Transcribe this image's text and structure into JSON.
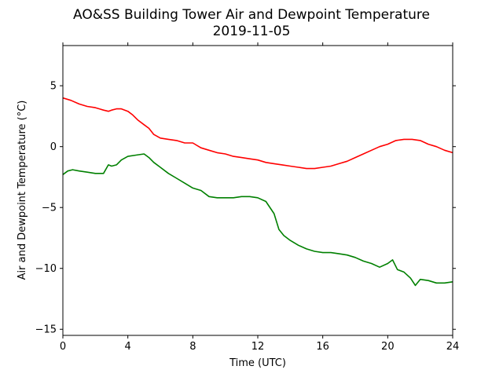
{
  "chart_data": {
    "type": "line",
    "title": "AO&SS Building Tower Air and Dewpoint Temperature",
    "subtitle": "2019-11-05",
    "xlabel": "Time (UTC)",
    "ylabel": "Air and Dewpoint Temperature (°C)",
    "xlim": [
      0,
      24
    ],
    "ylim": [
      -15.5,
      8.3
    ],
    "xticks": [
      0,
      4,
      8,
      12,
      16,
      20,
      24
    ],
    "yticks": [
      -15,
      -10,
      -5,
      0,
      5
    ],
    "grid": false,
    "legend": "none",
    "series": [
      {
        "color": "#ff0000",
        "x": [
          0,
          0.5,
          1,
          1.5,
          2,
          2.5,
          2.8,
          3,
          3.3,
          3.6,
          4,
          4.3,
          4.6,
          5,
          5.3,
          5.6,
          6,
          6.5,
          7,
          7.5,
          8,
          8.5,
          9,
          9.5,
          10,
          10.5,
          11,
          11.5,
          12,
          12.5,
          13,
          13.5,
          14,
          14.5,
          15,
          15.5,
          16,
          16.5,
          17,
          17.5,
          18,
          18.5,
          19,
          19.5,
          20,
          20.5,
          21,
          21.5,
          22,
          22.5,
          23,
          23.5,
          24
        ],
        "y": [
          4.0,
          3.8,
          3.5,
          3.3,
          3.2,
          3.0,
          2.9,
          3.0,
          3.1,
          3.1,
          2.9,
          2.6,
          2.2,
          1.8,
          1.5,
          1.0,
          0.7,
          0.6,
          0.5,
          0.3,
          0.3,
          -0.1,
          -0.3,
          -0.5,
          -0.6,
          -0.8,
          -0.9,
          -1.0,
          -1.1,
          -1.3,
          -1.4,
          -1.5,
          -1.6,
          -1.7,
          -1.8,
          -1.8,
          -1.7,
          -1.6,
          -1.4,
          -1.2,
          -0.9,
          -0.6,
          -0.3,
          0.0,
          0.2,
          0.5,
          0.6,
          0.6,
          0.5,
          0.2,
          0.0,
          -0.3,
          -0.5
        ]
      },
      {
        "color": "#008000",
        "x": [
          0,
          0.3,
          0.6,
          1,
          1.5,
          2,
          2.5,
          2.8,
          3,
          3.3,
          3.6,
          4,
          4.5,
          5,
          5.3,
          5.6,
          6,
          6.5,
          7,
          7.5,
          8,
          8.5,
          9,
          9.5,
          10,
          10.5,
          11,
          11.5,
          12,
          12.5,
          13,
          13.3,
          13.6,
          14,
          14.5,
          15,
          15.5,
          16,
          16.5,
          17,
          17.5,
          18,
          18.5,
          19,
          19.5,
          20,
          20.3,
          20.6,
          21,
          21.4,
          21.7,
          22,
          22.5,
          23,
          23.5,
          24
        ],
        "y": [
          -2.3,
          -2.0,
          -1.9,
          -2.0,
          -2.1,
          -2.2,
          -2.2,
          -1.5,
          -1.6,
          -1.5,
          -1.1,
          -0.8,
          -0.7,
          -0.6,
          -0.9,
          -1.3,
          -1.7,
          -2.2,
          -2.6,
          -3.0,
          -3.4,
          -3.6,
          -4.1,
          -4.2,
          -4.2,
          -4.2,
          -4.1,
          -4.1,
          -4.2,
          -4.5,
          -5.5,
          -6.8,
          -7.3,
          -7.7,
          -8.1,
          -8.4,
          -8.6,
          -8.7,
          -8.7,
          -8.8,
          -8.9,
          -9.1,
          -9.4,
          -9.6,
          -9.9,
          -9.6,
          -9.3,
          -10.1,
          -10.3,
          -10.8,
          -11.4,
          -10.9,
          -11.0,
          -11.2,
          -11.2,
          -11.1
        ]
      }
    ]
  }
}
